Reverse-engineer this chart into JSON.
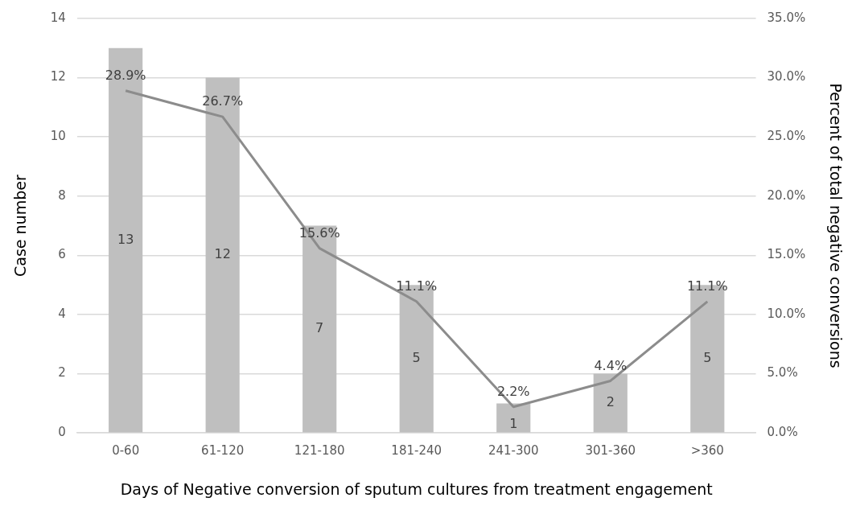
{
  "chart_data": {
    "type": "bar",
    "xlabel": "Days of Negative conversion of sputum cultures from treatment engagement",
    "ylabel": "Case number",
    "y2label": "Percent of total negative conversions",
    "categories": [
      "0-60",
      "61-120",
      "121-180",
      "181-240",
      "241-300",
      "301-360",
      ">360"
    ],
    "series": [
      {
        "color": "#bfbfbf",
        "values": [
          13,
          12,
          7,
          5,
          1,
          2,
          5
        ],
        "value_labels": [
          "13",
          "12",
          "7",
          "5",
          "1",
          "2",
          "5"
        ]
      },
      {
        "type": "line",
        "axis": "y2",
        "color": "#8c8c8c",
        "marker": "none",
        "values": [
          28.9,
          26.7,
          15.6,
          11.1,
          2.2,
          4.4,
          11.1
        ],
        "value_labels": [
          "28.9%",
          "26.7%",
          "15.6%",
          "11.1%",
          "2.2%",
          "4.4%",
          "11.1%"
        ]
      }
    ],
    "ylim": [
      0,
      14
    ],
    "yticks": [
      0,
      2,
      4,
      6,
      8,
      10,
      12,
      14
    ],
    "y2lim": [
      0,
      35
    ],
    "y2ticks": [
      {
        "value": 0,
        "label": "0.0%"
      },
      {
        "value": 5,
        "label": "5.0%"
      },
      {
        "value": 10,
        "label": "10.0%"
      },
      {
        "value": 15,
        "label": "15.0%"
      },
      {
        "value": 20,
        "label": "20.0%"
      },
      {
        "value": 25,
        "label": "25.0%"
      },
      {
        "value": 30,
        "label": "30.0%"
      },
      {
        "value": 35,
        "label": "35.0%"
      }
    ],
    "grid": "y",
    "legend": false
  }
}
